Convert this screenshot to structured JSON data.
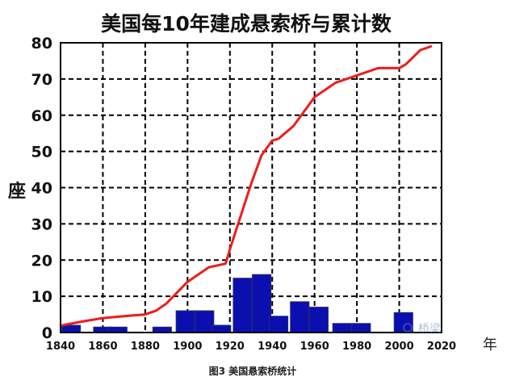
{
  "chart_data": {
    "type": "bar",
    "title": "美国每10年建成悬索桥与累计数",
    "caption": "图3 美国悬索桥统计",
    "ylabel": "座",
    "xunit": "年",
    "xlim": [
      1840,
      2020
    ],
    "ylim": [
      0,
      80
    ],
    "x_ticks": [
      1840,
      1860,
      1880,
      1900,
      1920,
      1940,
      1960,
      1980,
      2000,
      2020
    ],
    "y_ticks": [
      0,
      10,
      20,
      30,
      40,
      50,
      60,
      70,
      80
    ],
    "grid": true,
    "colors": {
      "bars": "#0b0fb0",
      "line": "#ee1c1c",
      "grid": "#000000"
    },
    "bars": [
      {
        "x": 1845,
        "value": 2
      },
      {
        "x": 1860,
        "value": 1.5
      },
      {
        "x": 1867,
        "value": 1.5
      },
      {
        "x": 1888,
        "value": 1.5
      },
      {
        "x": 1899,
        "value": 6
      },
      {
        "x": 1908,
        "value": 6
      },
      {
        "x": 1916,
        "value": 2
      },
      {
        "x": 1926,
        "value": 15
      },
      {
        "x": 1935,
        "value": 16
      },
      {
        "x": 1943,
        "value": 4.5
      },
      {
        "x": 1953,
        "value": 8.5
      },
      {
        "x": 1962,
        "value": 7
      },
      {
        "x": 1973,
        "value": 2.5
      },
      {
        "x": 1982,
        "value": 2.5
      },
      {
        "x": 2002,
        "value": 5.5
      }
    ],
    "cumulative": {
      "x": [
        1841,
        1850,
        1860,
        1870,
        1880,
        1885,
        1890,
        1900,
        1910,
        1918,
        1920,
        1930,
        1935,
        1940,
        1943,
        1950,
        1960,
        1970,
        1980,
        1990,
        2000,
        2003,
        2010,
        2015
      ],
      "values": [
        2,
        3,
        4,
        4.5,
        5,
        6,
        8,
        14,
        18,
        19,
        23,
        41,
        49,
        53,
        53.5,
        57,
        65,
        69,
        71,
        73,
        73,
        74,
        78,
        79
      ]
    }
  },
  "watermark": "桥梁"
}
